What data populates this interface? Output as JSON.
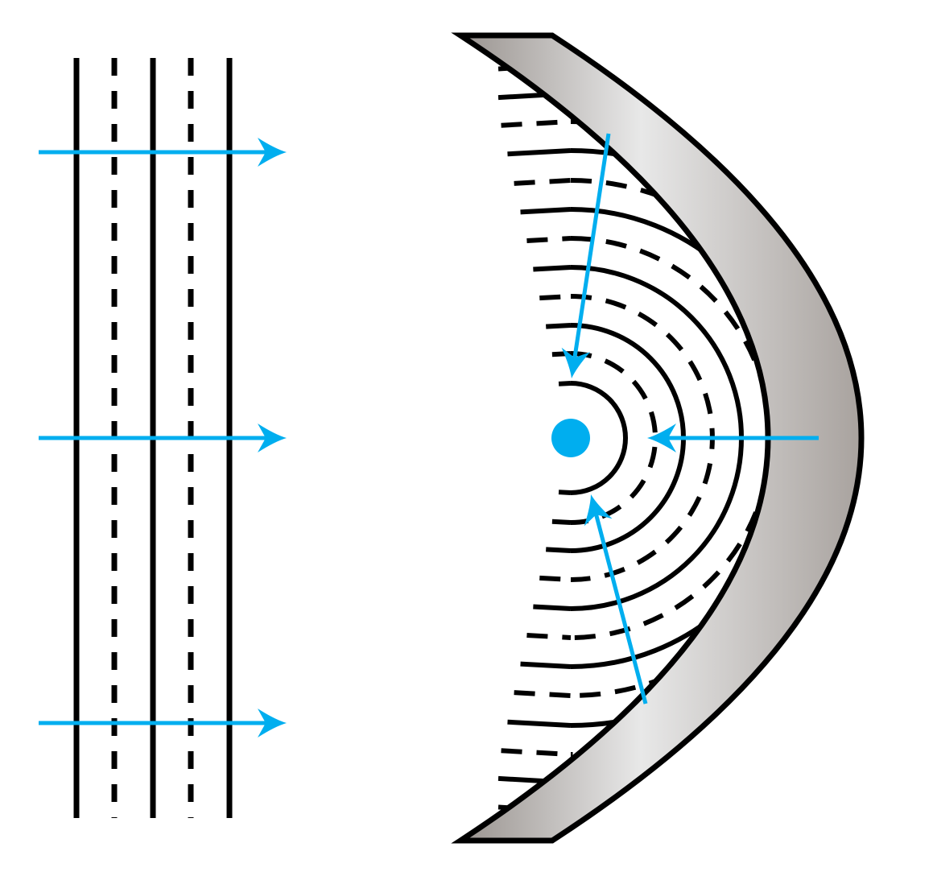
{
  "diagram": {
    "colors": {
      "ray": "#00AEEF",
      "focus": "#00AEEF",
      "line": "#000000",
      "mirror_light": "#e8e8e8",
      "mirror_dark": "#a8a29e",
      "background": "#ffffff"
    },
    "plane_waves": {
      "wavefronts": [
        "solid",
        "dashed",
        "solid",
        "dashed",
        "solid"
      ],
      "rays": 3
    },
    "mirror": {
      "shape": "concave-parabolic",
      "wavefronts": [
        {
          "r": 68,
          "style": "solid"
        },
        {
          "r": 105,
          "style": "dashed"
        },
        {
          "r": 140,
          "style": "solid"
        },
        {
          "r": 176,
          "style": "dashed"
        },
        {
          "r": 212,
          "style": "solid"
        },
        {
          "r": 248,
          "style": "dashed"
        },
        {
          "r": 284,
          "style": "solid"
        },
        {
          "r": 320,
          "style": "dashed"
        },
        {
          "r": 357,
          "style": "solid"
        },
        {
          "r": 393,
          "style": "dashed"
        },
        {
          "r": 428,
          "style": "solid"
        },
        {
          "r": 464,
          "style": "dashed"
        }
      ],
      "rays": 3
    }
  }
}
